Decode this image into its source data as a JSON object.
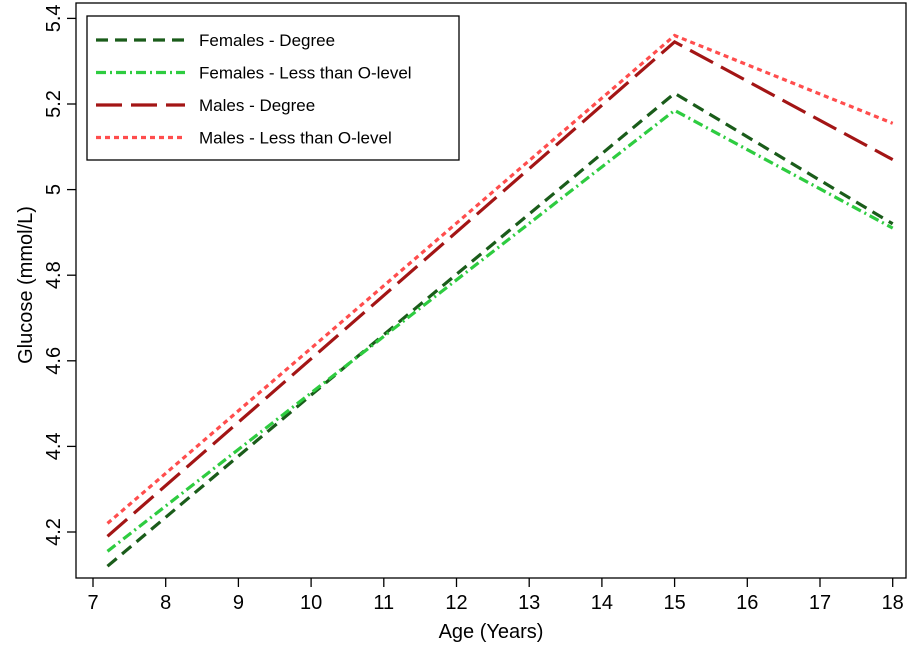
{
  "chart_data": {
    "type": "line",
    "xlabel": "Age (Years)",
    "ylabel": "Glucose (mmol/L)",
    "xlim": [
      7,
      18
    ],
    "ylim": [
      4.15,
      5.4
    ],
    "xticks": [
      7,
      8,
      9,
      10,
      11,
      12,
      13,
      14,
      15,
      16,
      17,
      18
    ],
    "yticks": [
      4.2,
      4.4,
      4.6,
      4.8,
      5,
      5.2,
      5.4
    ],
    "ytick_labels": [
      "4.2",
      "4.4",
      "4.6",
      "4.8",
      "5",
      "5.2",
      "5.4"
    ],
    "grid": false,
    "legend_position": "top-left",
    "series": [
      {
        "name": "Females - Degree",
        "color": "#1a5c1a",
        "style": "dashed",
        "x": [
          7.2,
          10,
          15,
          18
        ],
        "y": [
          4.12,
          4.52,
          5.225,
          4.92
        ]
      },
      {
        "name": "Females - Less than O-level",
        "color": "#2ecc40",
        "style": "dashdot",
        "x": [
          7.2,
          10,
          15,
          18
        ],
        "y": [
          4.155,
          4.525,
          5.185,
          4.91
        ]
      },
      {
        "name": "Males - Degree",
        "color": "#a31515",
        "style": "longdash",
        "x": [
          7.2,
          15,
          18
        ],
        "y": [
          4.19,
          5.345,
          5.07
        ]
      },
      {
        "name": "Males - Less than O-level",
        "color": "#ff4d4d",
        "style": "dotted",
        "x": [
          7.2,
          15,
          18
        ],
        "y": [
          4.22,
          5.36,
          5.155
        ]
      }
    ]
  }
}
